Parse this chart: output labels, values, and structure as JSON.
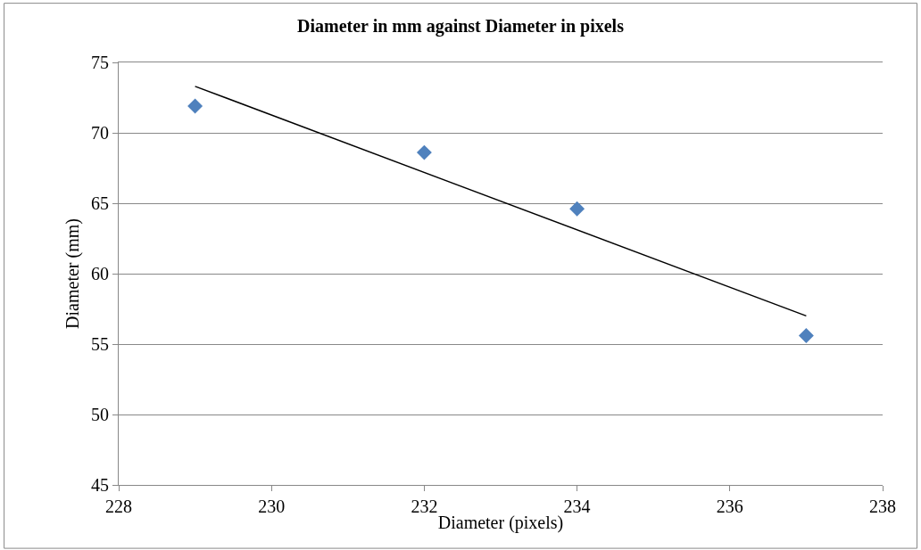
{
  "chart_data": {
    "type": "scatter",
    "title": "Diameter in mm against Diameter in pixels",
    "xlabel": "Diameter (pixels)",
    "ylabel": "Diameter (mm)",
    "series": [
      {
        "color": "#4f81bd",
        "marker": "diamond",
        "x": [
          229,
          232,
          234,
          237
        ],
        "values": [
          71.9,
          68.6,
          64.6,
          55.6
        ]
      },
      {
        "type": "line",
        "color": "#000000",
        "marker": "none",
        "x": [
          229,
          237
        ],
        "values": [
          73.3,
          57.0
        ]
      }
    ],
    "xlim": [
      228,
      238
    ],
    "xticks": [
      228,
      230,
      232,
      234,
      236,
      238
    ],
    "ylim": [
      45,
      75
    ],
    "yticks": [
      45,
      50,
      55,
      60,
      65,
      70,
      75
    ],
    "grid": "y"
  }
}
